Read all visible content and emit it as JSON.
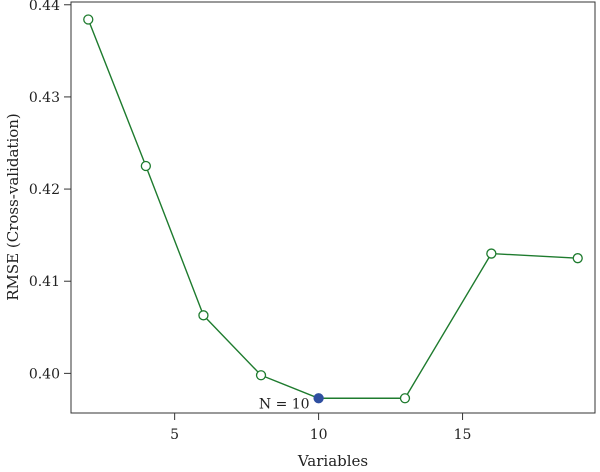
{
  "chart_data": {
    "type": "line",
    "title": "",
    "xlabel": "Variables",
    "ylabel": "RMSE (Cross-validation)",
    "xlim": [
      1.4,
      19.6
    ],
    "ylim": [
      0.3957,
      0.4403
    ],
    "x_ticks": [
      5,
      10,
      15
    ],
    "x_tick_labels": [
      "5",
      "10",
      "15"
    ],
    "y_ticks": [
      0.4,
      0.41,
      0.42,
      0.43,
      0.44
    ],
    "y_tick_labels": [
      "0.40",
      "0.41",
      "0.42",
      "0.43",
      "0.44"
    ],
    "grid": false,
    "series": [
      {
        "x": [
          2,
          4,
          6,
          8,
          10,
          13,
          16,
          19
        ],
        "y": [
          0.4384,
          0.4225,
          0.4063,
          0.3998,
          0.3973,
          0.3973,
          0.413,
          0.4125
        ],
        "color": "#1e7b2e",
        "marker": "open-circle"
      }
    ],
    "highlight": {
      "x": 10,
      "y": 0.3973,
      "color": "#2f4fa0"
    },
    "annotation": {
      "text": "N = 10",
      "x": 10,
      "y": 0.3973
    }
  }
}
